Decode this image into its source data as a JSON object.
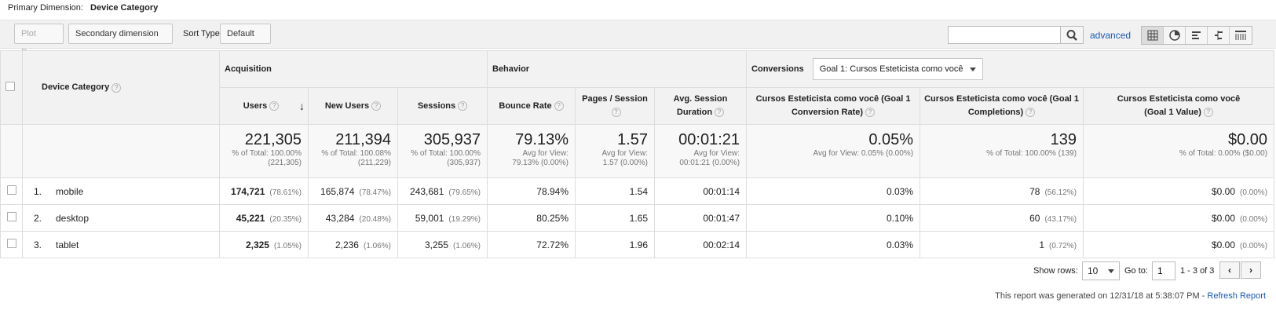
{
  "primary_dimension": {
    "label": "Primary Dimension:",
    "value": "Device Category"
  },
  "toolbar": {
    "plot_rows": "Plot Rows",
    "secondary_dimension": "Secondary dimension",
    "sort_type_label": "Sort Type:",
    "sort_type_value": "Default",
    "search_value": "",
    "advanced": "advanced",
    "view_icons": [
      "table-view-icon",
      "pie-view-icon",
      "performance-view-icon",
      "comparison-view-icon",
      "pivot-view-icon"
    ]
  },
  "table": {
    "dimension_header": "Device Category",
    "groups": {
      "acquisition": "Acquisition",
      "behavior": "Behavior",
      "conversions": "Conversions",
      "goal_select": "Goal 1: Cursos Esteticista como você"
    },
    "columns": [
      "Users",
      "New Users",
      "Sessions",
      "Bounce Rate",
      "Pages / Session",
      "Avg. Session Duration",
      "Cursos Esteticista como você (Goal 1 Conversion Rate)",
      "Cursos Esteticista como você (Goal 1 Completions)",
      "Cursos Esteticista como você (Goal 1 Value)"
    ],
    "column_lines": [
      [
        "Users"
      ],
      [
        "New Users"
      ],
      [
        "Sessions"
      ],
      [
        "Bounce Rate"
      ],
      [
        "Pages / Session"
      ],
      [
        "Avg. Session",
        "Duration"
      ],
      [
        "Cursos Esteticista como você (Goal 1",
        "Conversion Rate)"
      ],
      [
        "Cursos Esteticista como você (Goal 1",
        "Completions)"
      ],
      [
        "Cursos Esteticista como você",
        "(Goal 1 Value)"
      ]
    ],
    "totals": [
      {
        "big": "221,305",
        "sub": [
          "% of Total: 100.00%",
          "(221,305)"
        ]
      },
      {
        "big": "211,394",
        "sub": [
          "% of Total: 100.08%",
          "(211,229)"
        ]
      },
      {
        "big": "305,937",
        "sub": [
          "% of Total: 100.00%",
          "(305,937)"
        ]
      },
      {
        "big": "79.13%",
        "sub": [
          "Avg for View:",
          "79.13% (0.00%)"
        ]
      },
      {
        "big": "1.57",
        "sub": [
          "Avg for View:",
          "1.57 (0.00%)"
        ]
      },
      {
        "big": "00:01:21",
        "sub": [
          "Avg for View:",
          "00:01:21 (0.00%)"
        ]
      },
      {
        "big": "0.05%",
        "sub": [
          "Avg for View: 0.05% (0.00%)"
        ]
      },
      {
        "big": "139",
        "sub": [
          "% of Total: 100.00% (139)"
        ]
      },
      {
        "big": "$0.00",
        "sub": [
          "% of Total: 0.00% ($0.00)"
        ]
      }
    ],
    "rows": [
      {
        "index": "1.",
        "name": "mobile",
        "users": "174,721",
        "users_pct": "(78.61%)",
        "new_users": "165,874",
        "new_users_pct": "(78.47%)",
        "sessions": "243,681",
        "sessions_pct": "(79.65%)",
        "bounce": "78.94%",
        "pages": "1.54",
        "duration": "00:01:14",
        "conv_rate": "0.03%",
        "completions": "78",
        "completions_pct": "(56.12%)",
        "value": "$0.00",
        "value_pct": "(0.00%)"
      },
      {
        "index": "2.",
        "name": "desktop",
        "users": "45,221",
        "users_pct": "(20.35%)",
        "new_users": "43,284",
        "new_users_pct": "(20.48%)",
        "sessions": "59,001",
        "sessions_pct": "(19.29%)",
        "bounce": "80.25%",
        "pages": "1.65",
        "duration": "00:01:47",
        "conv_rate": "0.10%",
        "completions": "60",
        "completions_pct": "(43.17%)",
        "value": "$0.00",
        "value_pct": "(0.00%)"
      },
      {
        "index": "3.",
        "name": "tablet",
        "users": "2,325",
        "users_pct": "(1.05%)",
        "new_users": "2,236",
        "new_users_pct": "(1.06%)",
        "sessions": "3,255",
        "sessions_pct": "(1.06%)",
        "bounce": "72.72%",
        "pages": "1.96",
        "duration": "00:02:14",
        "conv_rate": "0.03%",
        "completions": "1",
        "completions_pct": "(0.72%)",
        "value": "$0.00",
        "value_pct": "(0.00%)"
      }
    ]
  },
  "footer": {
    "show_rows_label": "Show rows:",
    "show_rows_value": "10",
    "goto_label": "Go to:",
    "goto_value": "1",
    "range": "1 - 3 of 3",
    "generated_text": "This report was generated on 12/31/18 at 5:38:07 PM - ",
    "refresh": "Refresh Report"
  },
  "colors": {
    "link": "#1a58b4",
    "header_bg": "#f2f2f2",
    "totals_bg": "#f8f8f8"
  }
}
